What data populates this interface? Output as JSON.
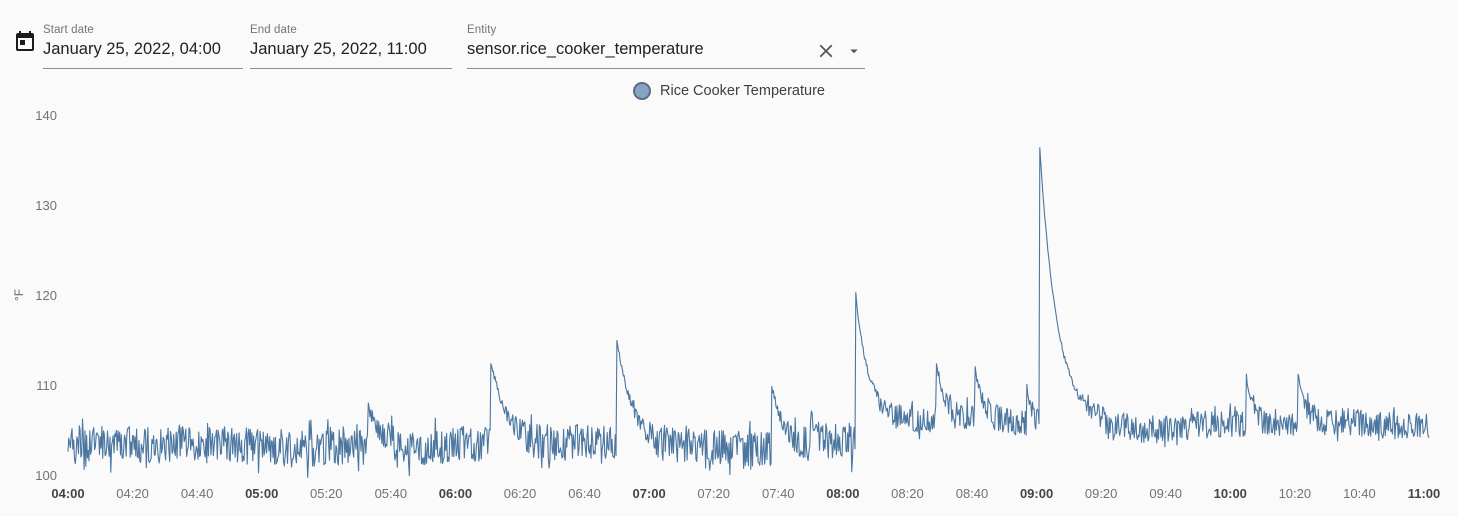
{
  "toolbar": {
    "start_date": {
      "label": "Start date",
      "value": "January 25, 2022, 04:00"
    },
    "end_date": {
      "label": "End date",
      "value": "January 25, 2022, 11:00"
    },
    "entity": {
      "label": "Entity",
      "value": "sensor.rice_cooker_temperature"
    }
  },
  "legend": {
    "label": "Rice Cooker Temperature",
    "marker_fill": "#87a4c3",
    "marker_border": "#5b6e82"
  },
  "chart_data": {
    "type": "line",
    "series_name": "Rice Cooker Temperature",
    "unit": "°F",
    "ylabel": "°F",
    "line_color": "#4a76a0",
    "x_start": "04:00",
    "x_end": "11:00",
    "duration_min": 420,
    "x_tick_interval_min": 20,
    "x_ticks": [
      "04:00",
      "04:20",
      "04:40",
      "05:00",
      "05:20",
      "05:40",
      "06:00",
      "06:20",
      "06:40",
      "07:00",
      "07:20",
      "07:40",
      "08:00",
      "08:20",
      "08:40",
      "09:00",
      "09:20",
      "09:40",
      "10:00",
      "10:20",
      "10:40",
      "11:00"
    ],
    "x_ticks_bold": [
      "04:00",
      "05:00",
      "06:00",
      "07:00",
      "08:00",
      "09:00",
      "10:00",
      "11:00"
    ],
    "y_ticks": [
      100,
      110,
      120,
      130,
      140
    ],
    "ylim": [
      99,
      141.5
    ],
    "grid": false,
    "legend_position": "top-center",
    "baseline_segments": [
      {
        "start_min": 0,
        "end_min": 245,
        "level": 103.3,
        "noise": 2.0
      },
      {
        "start_min": 245,
        "end_min": 302,
        "level": 106.0,
        "noise": 1.4
      },
      {
        "start_min": 302,
        "end_min": 422,
        "level": 105.6,
        "noise": 1.5
      }
    ],
    "peaks": [
      {
        "time": "05:33",
        "min": 93,
        "value": 108.0,
        "decay_min": 4
      },
      {
        "time": "06:11",
        "min": 131,
        "value": 112.5,
        "decay_min": 5
      },
      {
        "time": "06:50",
        "min": 170,
        "value": 115.0,
        "decay_min": 5
      },
      {
        "time": "07:38",
        "min": 218,
        "value": 110.5,
        "decay_min": 4
      },
      {
        "time": "07:50",
        "min": 230,
        "value": 107.0,
        "decay_min": 2.5
      },
      {
        "time": "08:04",
        "min": 244,
        "value": 120.0,
        "decay_min": 4
      },
      {
        "time": "08:29",
        "min": 269,
        "value": 112.3,
        "decay_min": 2.5
      },
      {
        "time": "08:41",
        "min": 281,
        "value": 111.5,
        "decay_min": 2.5
      },
      {
        "time": "08:57",
        "min": 297,
        "value": 110.5,
        "decay_min": 1.5
      },
      {
        "time": "09:01",
        "min": 301,
        "value": 136.6,
        "decay_min": 5.5
      },
      {
        "time": "10:05",
        "min": 365,
        "value": 111.3,
        "decay_min": 2
      },
      {
        "time": "10:21",
        "min": 381,
        "value": 111.0,
        "decay_min": 2
      }
    ]
  }
}
